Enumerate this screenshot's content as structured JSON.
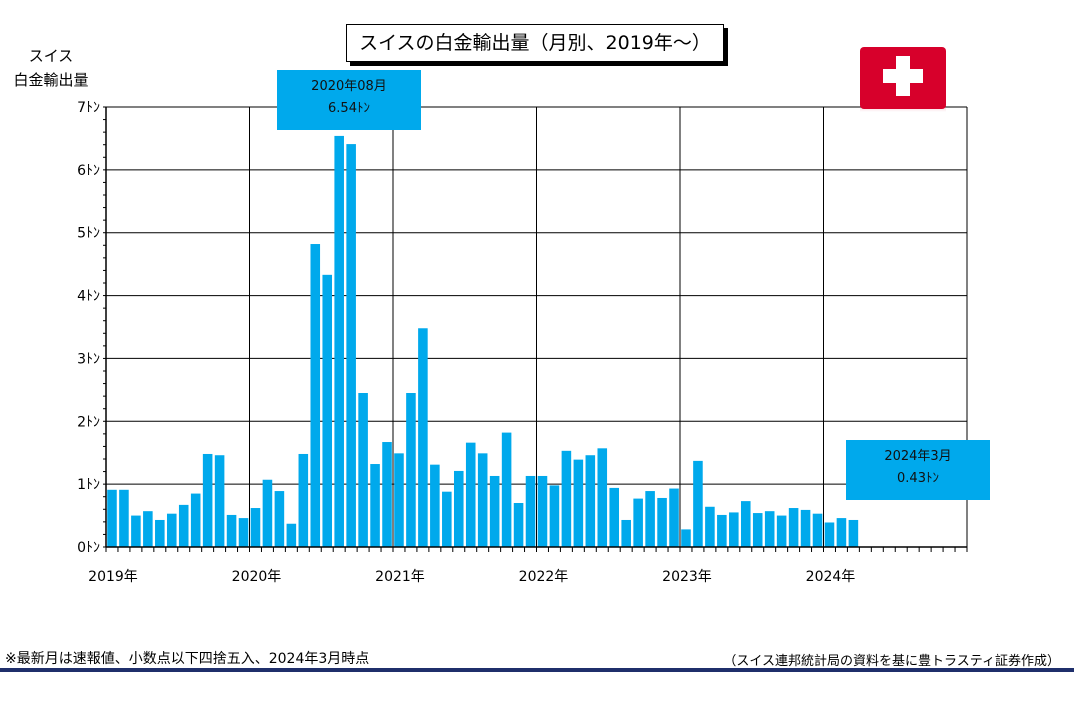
{
  "chart_data": {
    "type": "bar",
    "title": "スイスの白金輸出量（月別、2019年～）",
    "ylabel_line1": "スイス",
    "ylabel_line2": "白金輸出量",
    "ylim": [
      0,
      7
    ],
    "y_ticks": [
      "0ﾄﾝ",
      "1ﾄﾝ",
      "2ﾄﾝ",
      "3ﾄﾝ",
      "4ﾄﾝ",
      "5ﾄﾝ",
      "6ﾄﾝ",
      "7ﾄﾝ"
    ],
    "x_year_labels": [
      "2019年",
      "2020年",
      "2021年",
      "2022年",
      "2023年",
      "2024年"
    ],
    "x_range": [
      "2019-01",
      "2024-12"
    ],
    "grid": true,
    "bar_color": "#00a9ec",
    "months": [
      "2019-01",
      "2019-02",
      "2019-03",
      "2019-04",
      "2019-05",
      "2019-06",
      "2019-07",
      "2019-08",
      "2019-09",
      "2019-10",
      "2019-11",
      "2019-12",
      "2020-01",
      "2020-02",
      "2020-03",
      "2020-04",
      "2020-05",
      "2020-06",
      "2020-07",
      "2020-08",
      "2020-09",
      "2020-10",
      "2020-11",
      "2020-12",
      "2021-01",
      "2021-02",
      "2021-03",
      "2021-04",
      "2021-05",
      "2021-06",
      "2021-07",
      "2021-08",
      "2021-09",
      "2021-10",
      "2021-11",
      "2021-12",
      "2022-01",
      "2022-02",
      "2022-03",
      "2022-04",
      "2022-05",
      "2022-06",
      "2022-07",
      "2022-08",
      "2022-09",
      "2022-10",
      "2022-11",
      "2022-12",
      "2023-01",
      "2023-02",
      "2023-03",
      "2023-04",
      "2023-05",
      "2023-06",
      "2023-07",
      "2023-08",
      "2023-09",
      "2023-10",
      "2023-11",
      "2023-12",
      "2024-01",
      "2024-02",
      "2024-03"
    ],
    "values": [
      0.91,
      0.91,
      0.5,
      0.57,
      0.43,
      0.53,
      0.67,
      0.85,
      1.48,
      1.46,
      0.51,
      0.46,
      0.62,
      1.07,
      0.89,
      0.37,
      1.48,
      4.82,
      4.33,
      6.54,
      6.41,
      2.45,
      1.32,
      1.67,
      1.49,
      2.45,
      3.48,
      1.31,
      0.88,
      1.21,
      1.66,
      1.49,
      1.13,
      1.82,
      0.7,
      1.13,
      1.13,
      0.98,
      1.53,
      1.39,
      1.46,
      1.57,
      0.94,
      0.43,
      0.77,
      0.89,
      0.78,
      0.93,
      0.28,
      1.37,
      0.64,
      0.51,
      0.55,
      0.73,
      0.54,
      0.57,
      0.5,
      0.62,
      0.59,
      0.53,
      0.39,
      0.46,
      0.43
    ],
    "annotations": [
      {
        "month": "2020年08月",
        "value": "6.54ﾄﾝ"
      },
      {
        "month": "2024年3月",
        "value": "0.43ﾄﾝ"
      }
    ]
  },
  "footnote": "※最新月は速報値、小数点以下四捨五入、2024年3月時点",
  "source": "（スイス連邦統計局の資料を基に豊トラスティ証券作成）",
  "flag_color": "#d7002b"
}
